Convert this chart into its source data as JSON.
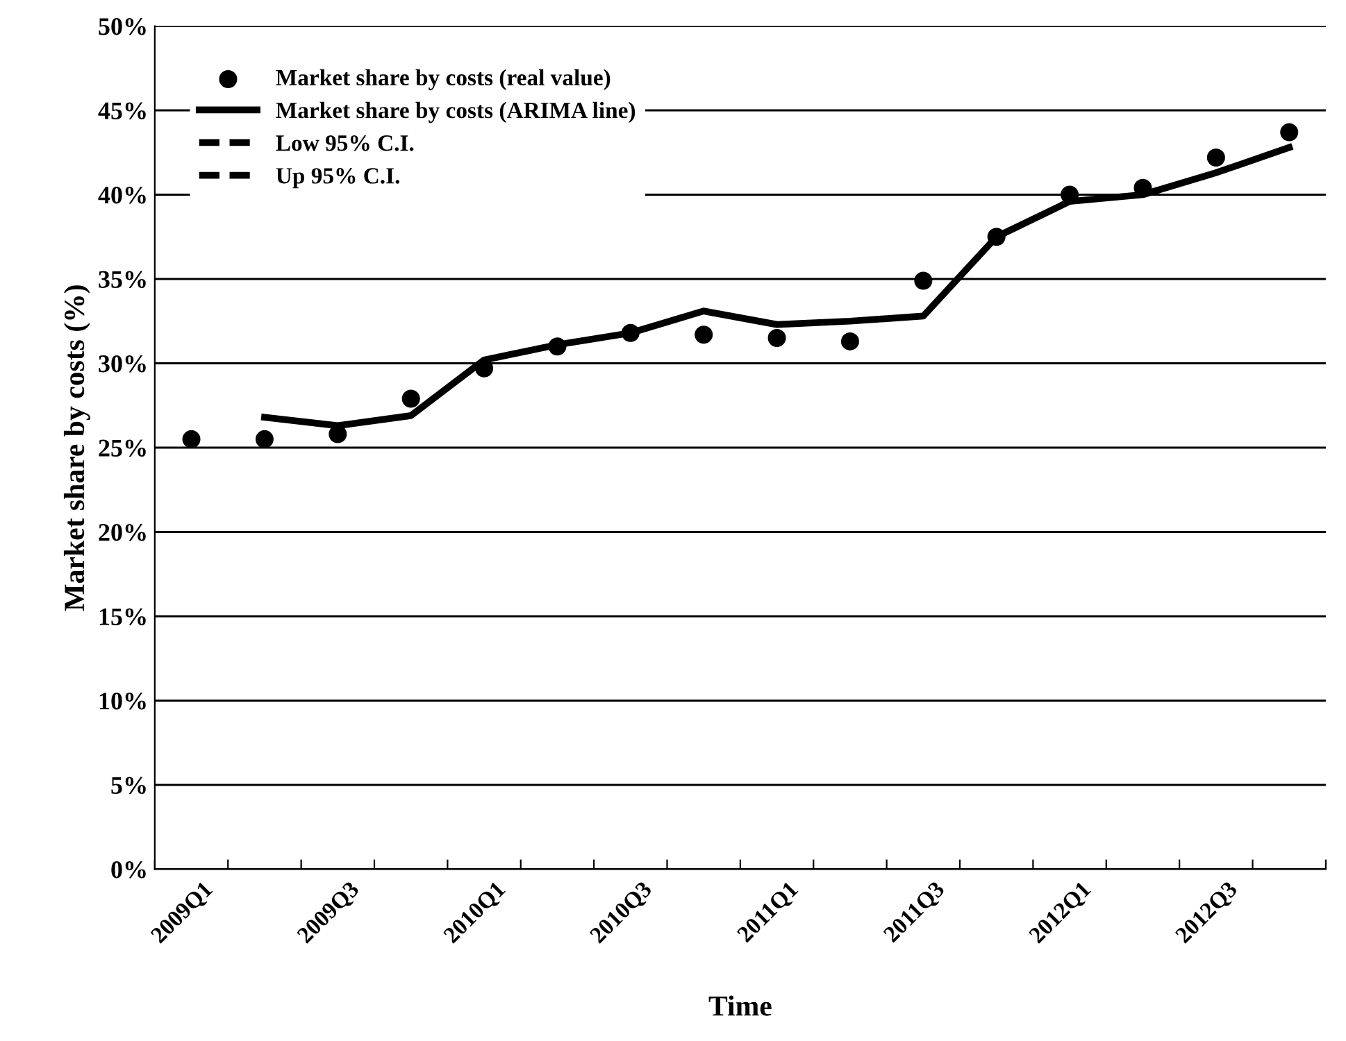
{
  "chart_data": {
    "type": "line",
    "categories": [
      "2009Q1",
      null,
      "2009Q3",
      null,
      "2010Q1",
      null,
      "2010Q3",
      null,
      "2011Q1",
      null,
      "2011Q3",
      null,
      "2012Q1",
      null,
      "2012Q3",
      null
    ],
    "xlabel": "Time",
    "ylabel": "Market share by costs (%)",
    "ylim": [
      0,
      50
    ],
    "yticks": [
      {
        "value": 0,
        "label": "0%"
      },
      {
        "value": 5,
        "label": "5%"
      },
      {
        "value": 10,
        "label": "10%"
      },
      {
        "value": 15,
        "label": "15%"
      },
      {
        "value": 20,
        "label": "20%"
      },
      {
        "value": 25,
        "label": "25%"
      },
      {
        "value": 30,
        "label": "30%"
      },
      {
        "value": 35,
        "label": "35%"
      },
      {
        "value": 40,
        "label": "40%"
      },
      {
        "value": 45,
        "label": "45%"
      },
      {
        "value": 50,
        "label": "50%"
      }
    ],
    "grid": "y",
    "legend": "top left",
    "series": [
      {
        "name": "Market share by costs (real value)",
        "type": "scatter",
        "marker": "circle",
        "color": "#000000",
        "values": [
          25.5,
          25.5,
          25.8,
          27.9,
          29.7,
          31.0,
          31.8,
          31.7,
          31.5,
          31.3,
          34.9,
          37.5,
          40.0,
          40.4,
          42.2,
          43.7
        ]
      },
      {
        "name": "Market share by costs (ARIMA line)",
        "line_style": "solid",
        "color": "#000000",
        "values": [
          null,
          26.8,
          26.3,
          26.9,
          30.2,
          31.1,
          31.8,
          33.1,
          32.3,
          32.5,
          32.8,
          37.5,
          39.6,
          40.0,
          41.3,
          42.8
        ]
      },
      {
        "name": "Low 95% C.I.",
        "line_style": "dashed",
        "color": "#000000",
        "values": [
          null,
          null,
          null,
          null,
          null,
          null,
          null,
          null,
          null,
          null,
          null,
          null,
          null,
          null,
          null,
          null
        ]
      },
      {
        "name": "Up 95% C.I.",
        "line_style": "dashed",
        "color": "#000000",
        "values": [
          null,
          null,
          null,
          null,
          null,
          null,
          null,
          null,
          null,
          null,
          null,
          null,
          null,
          null,
          null,
          null
        ]
      }
    ]
  }
}
